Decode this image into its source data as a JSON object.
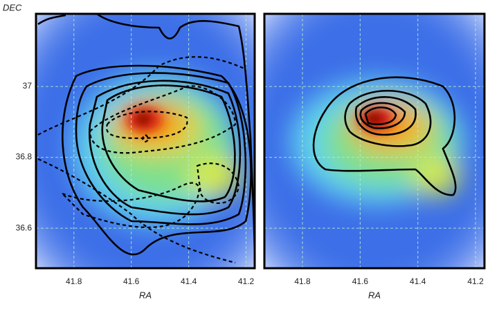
{
  "chart_data": [
    {
      "type": "heatmap",
      "xlabel": "RA",
      "ylabel": "DEC",
      "xlim": [
        41.932,
        41.17
      ],
      "ylim": [
        36.487,
        37.205
      ],
      "xticks": [
        41.8,
        41.6,
        41.4,
        41.2
      ],
      "yticks": [
        37,
        36.8,
        36.6
      ],
      "grid": true
    },
    {
      "type": "heatmap",
      "xlabel": "RA",
      "xlim": [
        41.932,
        41.169
      ],
      "ylim": [
        36.487,
        37.205
      ],
      "xticks": [
        41.8,
        41.6,
        41.4,
        41.2
      ],
      "grid": true
    }
  ]
}
